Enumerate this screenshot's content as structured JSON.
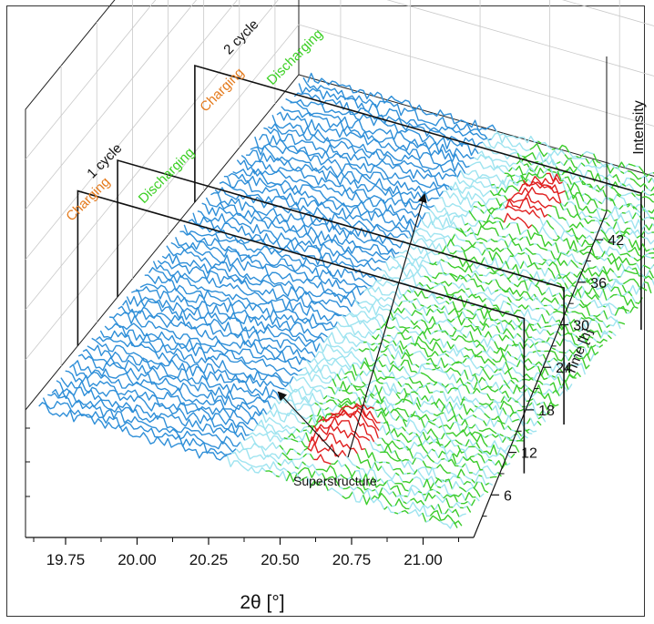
{
  "chart_data": {
    "type": "waterfall-3d-line",
    "xlabel": "2θ [°]",
    "x_ticks": [
      "19.75",
      "20.00",
      "20.25",
      "20.50",
      "20.75",
      "21.00"
    ],
    "xlim": [
      19.6,
      21.2
    ],
    "ylabel": "Time [h]",
    "y_ticks": [
      "6",
      "12",
      "18",
      "24",
      "30",
      "36",
      "42"
    ],
    "ylim": [
      0,
      46
    ],
    "zlabel": "Intensity",
    "cycles": [
      {
        "name": "1 cycle",
        "stages": [
          "Charging",
          "Discharging"
        ],
        "time_range": [
          0,
          15.5
        ]
      },
      {
        "name": "2 cycle",
        "stages": [
          "Charging",
          "Discharging"
        ],
        "time_range": [
          15.5,
          46
        ]
      }
    ],
    "stage_boundaries_h": [
      8.8,
      15.5,
      28.5,
      46
    ],
    "annotation": "Superstructure",
    "superstructure_peak_2theta": [
      20.55,
      20.72
    ],
    "n_scans": 62,
    "colors": {
      "low_angle_trace": "#2f8fd8",
      "background_trace": "#9fe4f0",
      "superstructure_trace": "#e02020",
      "discharge_trace": "#3ccc2c",
      "charging_label": "#e47a1c",
      "discharging_label": "#3bd023",
      "cycle_label": "#111111"
    }
  }
}
